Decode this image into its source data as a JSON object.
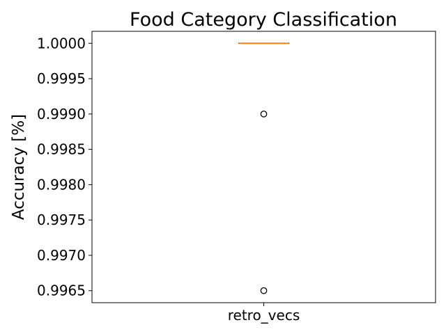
{
  "chart_data": {
    "type": "box",
    "title": "Food Category Classification",
    "xlabel": "",
    "ylabel": "Accuracy [%]",
    "categories": [
      "retro_vecs"
    ],
    "series": [
      {
        "category": "retro_vecs",
        "min": 1.0,
        "q1": 1.0,
        "median": 1.0,
        "q3": 1.0,
        "max": 1.0,
        "outliers": [
          0.999,
          0.9965
        ]
      }
    ],
    "ylim": [
      0.99633,
      1.00017
    ],
    "yticks": [
      0.9965,
      0.997,
      0.9975,
      0.998,
      0.9985,
      0.999,
      0.9995,
      1.0
    ],
    "ytick_labels": [
      "0.9965",
      "0.9970",
      "0.9975",
      "0.9980",
      "0.9985",
      "0.9990",
      "0.9995",
      "1.0000"
    ],
    "grid": false,
    "legend": "none",
    "colors": {
      "box": "#000000",
      "median": "#ff7f0e",
      "outlier": "#000000",
      "axes": "#000000"
    }
  }
}
